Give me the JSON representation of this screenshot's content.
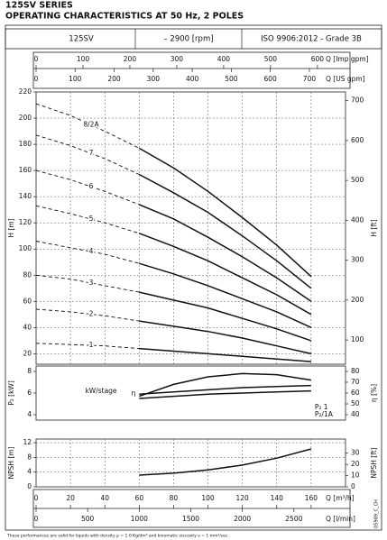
{
  "title": "125SV SERIES",
  "subtitle": "OPERATING CHARACTERISTICS AT 50 Hz, 2 POLES",
  "header": [
    "125SV",
    "– 2900 [rpm]",
    "ISO 9906:2012 - Grade 3B"
  ],
  "footnote": "These performances are valid for liquids with density ρ = 1.0 Kg/dm³ and kinematic viscosity ν = 1 mm²/sec.",
  "code": "05989_C_CH",
  "x_axes": [
    {
      "label": "Q [Imp gpm]",
      "position": "top",
      "xlim": [
        0,
        659.9
      ],
      "xticks": [
        0,
        100,
        200,
        300,
        400,
        500,
        600
      ]
    },
    {
      "label": "Q [US gpm]",
      "position": "top",
      "xlim": [
        0,
        792.5
      ],
      "xticks": [
        0,
        100,
        200,
        300,
        400,
        500,
        600,
        700
      ]
    },
    {
      "label": "Q [m³/h]",
      "position": "bottom",
      "xlim": [
        0,
        180
      ],
      "xticks": [
        0,
        20,
        40,
        60,
        80,
        100,
        120,
        140,
        160
      ]
    },
    {
      "label": "Q [l/min]",
      "position": "bottom",
      "xlim": [
        0,
        3000
      ],
      "xticks": [
        0,
        500,
        1000,
        1500,
        2000,
        2500
      ]
    }
  ],
  "chart_data": [
    {
      "type": "line",
      "ylabel": "H [m]",
      "y2label": "H [ft]",
      "xlim": [
        0,
        180
      ],
      "ylim": [
        12,
        220
      ],
      "yticks": [
        20,
        40,
        60,
        80,
        100,
        120,
        140,
        160,
        180,
        200,
        220
      ],
      "y2lim": [
        39.4,
        721.8
      ],
      "y2ticks": [
        100,
        200,
        300,
        400,
        500,
        600,
        700
      ],
      "grid": true,
      "dashed_below": 60,
      "label_position": "inline",
      "x": [
        0,
        20,
        40,
        60,
        80,
        100,
        120,
        140,
        160
      ],
      "series": [
        {
          "name": "1",
          "color": "#111111",
          "values": [
            28,
            27,
            26,
            24,
            22,
            20,
            18,
            16,
            14
          ]
        },
        {
          "name": "2",
          "color": "#111111",
          "values": [
            54,
            52,
            49,
            45,
            41,
            37,
            32,
            26,
            20
          ]
        },
        {
          "name": "3",
          "color": "#111111",
          "values": [
            80,
            77,
            72,
            67,
            61,
            55,
            47,
            39,
            30
          ]
        },
        {
          "name": "4",
          "color": "#111111",
          "values": [
            106,
            101,
            96,
            89,
            81,
            72,
            62,
            52,
            40
          ]
        },
        {
          "name": "5",
          "color": "#111111",
          "values": [
            133,
            127,
            120,
            112,
            102,
            91,
            78,
            65,
            50
          ]
        },
        {
          "name": "6",
          "color": "#111111",
          "values": [
            160,
            153,
            144,
            134,
            123,
            109,
            94,
            78,
            60
          ]
        },
        {
          "name": "7",
          "color": "#111111",
          "values": [
            187,
            179,
            169,
            157,
            143,
            128,
            110,
            91,
            70
          ]
        },
        {
          "name": "8/2A",
          "color": "#111111",
          "values": [
            211,
            202,
            190,
            177,
            162,
            144,
            124,
            103,
            79
          ]
        }
      ]
    },
    {
      "type": "line",
      "ylabel": "P₂ [kW]",
      "y2label": "η [%]",
      "xlim": [
        0,
        180
      ],
      "ylim": [
        3.5,
        8.5
      ],
      "yticks": [
        4,
        6,
        8
      ],
      "y2lim": [
        35,
        85
      ],
      "y2ticks": [
        40,
        50,
        60,
        70,
        80
      ],
      "grid": false,
      "annotation": "kW/stage",
      "x": [
        60,
        80,
        100,
        120,
        140,
        160
      ],
      "series": [
        {
          "name": "η",
          "color": "#111111",
          "axis": "y2",
          "label_at": "start",
          "values": [
            57,
            68,
            75,
            78,
            77,
            72
          ]
        },
        {
          "name": "P₂ 1",
          "color": "#111111",
          "label_at": "end",
          "values": [
            5.9,
            6.1,
            6.3,
            6.5,
            6.6,
            6.7
          ]
        },
        {
          "name": "P₂/1A",
          "color": "#111111",
          "label_at": "end",
          "values": [
            5.5,
            5.7,
            5.9,
            6.0,
            6.1,
            6.2
          ]
        }
      ]
    },
    {
      "type": "line",
      "ylabel": "NPSH [m]",
      "y2label": "NPSH [ft]",
      "xlim": [
        0,
        180
      ],
      "ylim": [
        0,
        13
      ],
      "yticks": [
        0,
        4,
        8,
        12
      ],
      "y2lim": [
        0,
        42.65
      ],
      "y2ticks": [
        0,
        10,
        20,
        30
      ],
      "grid": true,
      "x": [
        60,
        80,
        100,
        120,
        140,
        160
      ],
      "series": [
        {
          "color": "#111111",
          "values": [
            3.2,
            3.7,
            4.6,
            5.9,
            7.8,
            10.3
          ]
        }
      ]
    }
  ]
}
